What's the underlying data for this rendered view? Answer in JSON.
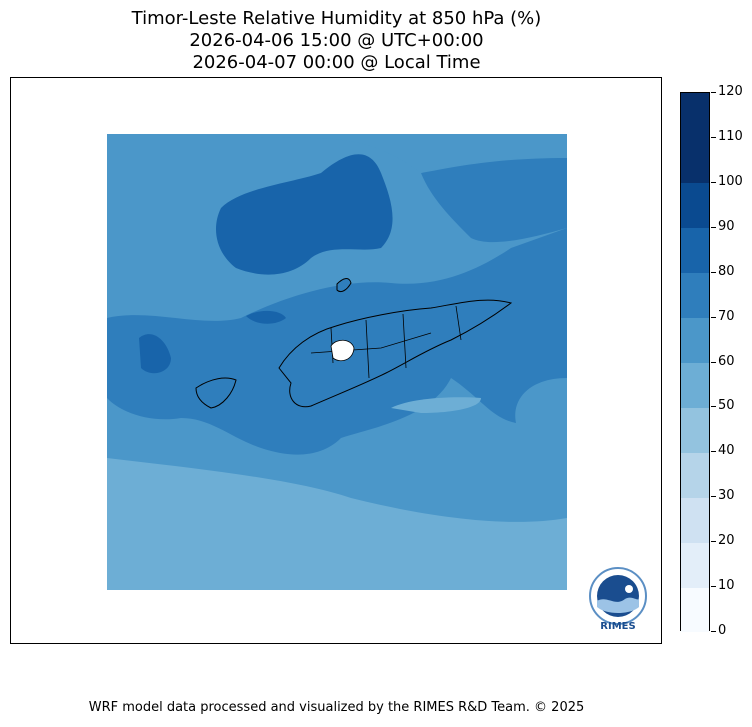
{
  "title": {
    "line1": "Timor-Leste Relative Humidity at 850 hPa (%)",
    "line2": "2026-04-06 15:00 @ UTC+00:00",
    "line3": "2026-04-07 00:00 @ Local Time"
  },
  "colorbar": {
    "ticks": [
      "0",
      "10",
      "20",
      "30",
      "40",
      "50",
      "60",
      "70",
      "80",
      "90",
      "100",
      "110",
      "120"
    ],
    "colors": [
      "#f7fbff",
      "#e3eef9",
      "#cfe1f2",
      "#b5d4e9",
      "#93c3df",
      "#6daed5",
      "#4b97c9",
      "#2f7ebc",
      "#1864aa",
      "#0a4a90",
      "#08306b",
      "#08306b"
    ]
  },
  "logo": {
    "text": "RIMES"
  },
  "footer": "WRF model data processed and visualized by the RIMES R&D Team. © 2025"
}
